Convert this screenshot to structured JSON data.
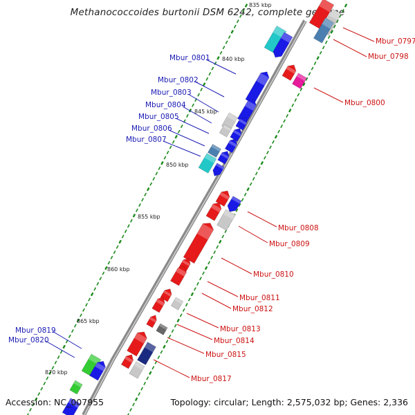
{
  "title": "Methanococcoides burtonii DSM 6242, complete genome",
  "footer": {
    "accession": "Accession: NC_007955",
    "summary": "Topology: circular; Length: 2,575,032 bp; Genes: 2,336"
  },
  "colors": {
    "forward_gene": "#1a1ae6",
    "reverse_gene": "#e61a1a",
    "hypothetical": "#c8c8c8",
    "teal": "#22c8c8",
    "steelblue": "#4a7fb0",
    "magenta": "#e61a9a",
    "green": "#33cc33",
    "darkgray": "#666666",
    "navy": "#1a2a80",
    "tick": "#1a8a1a",
    "backbone": "#888888",
    "forward_label": "#1a1ab4",
    "reverse_label": "#cc1111"
  },
  "scale_labels": [
    "835 kbp",
    "840 kbp",
    "845 kbp",
    "850 kbp",
    "855 kbp",
    "860 kbp",
    "865 kbp",
    "870 kbp"
  ],
  "forward_labels": [
    "Mbur_0801",
    "Mbur_0802",
    "Mbur_0803",
    "Mbur_0804",
    "Mbur_0805",
    "Mbur_0806",
    "Mbur_0807",
    "Mbur_0819",
    "Mbur_0820"
  ],
  "reverse_labels": [
    "Mbur_0797",
    "Mbur_0798",
    "Mbur_0800",
    "Mbur_0808",
    "Mbur_0809",
    "Mbur_0810",
    "Mbur_0811",
    "Mbur_0812",
    "Mbur_0813",
    "Mbur_0814",
    "Mbur_0815",
    "Mbur_0817"
  ]
}
